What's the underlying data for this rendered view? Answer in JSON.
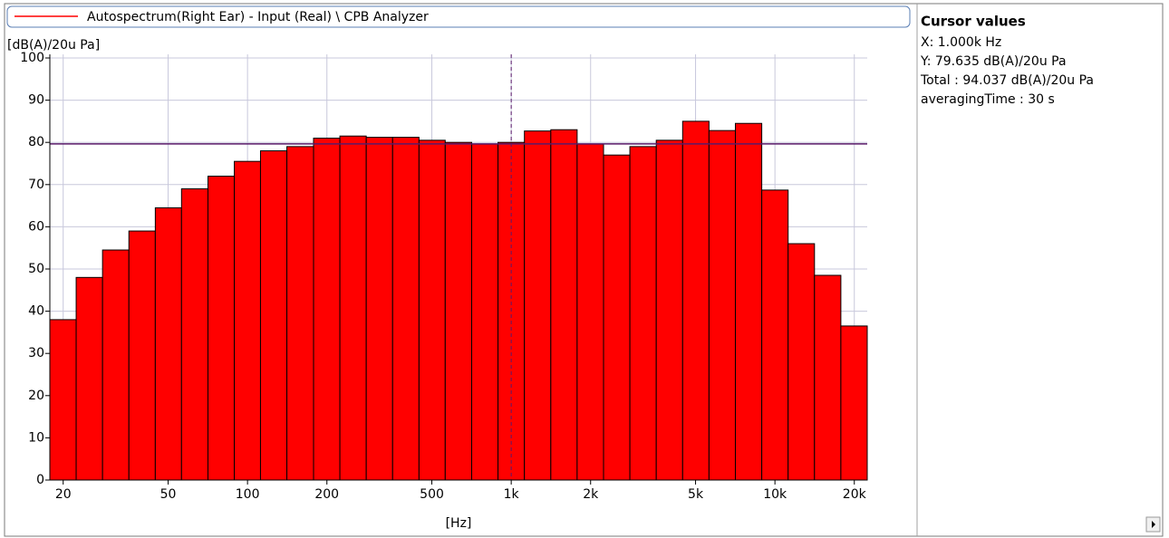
{
  "chart_data": {
    "type": "histogram",
    "legend_label": "Autospectrum(Right Ear) - Input (Real) \\ CPB Analyzer",
    "ylabel": "[dB(A)/20u Pa]",
    "xlabel": "[Hz]",
    "color": "#ff0000",
    "log_x": true,
    "grid": true,
    "bins": [
      17.8,
      22.4,
      28.2,
      35.5,
      44.7,
      56.2,
      70.8,
      89.1,
      112,
      141,
      178,
      224,
      282,
      355,
      447,
      562,
      708,
      891,
      1122,
      1413,
      1778,
      2239,
      2818,
      3548,
      4467,
      5623,
      7079,
      8913,
      11220,
      14125,
      17783,
      22387
    ],
    "values": [
      38,
      48,
      54.5,
      59,
      64.5,
      69,
      72,
      75.5,
      78,
      79,
      81,
      81.5,
      81.2,
      81.2,
      80.5,
      80,
      79.6,
      80,
      82.7,
      83,
      79.6,
      77,
      79,
      80.5,
      85,
      82.8,
      84.5,
      68.7,
      56,
      48.5,
      36.5
    ],
    "xlim": [
      17.8,
      22387
    ],
    "ylim": [
      0,
      100
    ],
    "xticks": [
      20,
      50,
      100,
      200,
      500,
      {
        "value": 1000,
        "label": "1k"
      },
      {
        "value": 2000,
        "label": "2k"
      },
      {
        "value": 5000,
        "label": "5k"
      },
      {
        "value": 10000,
        "label": "10k"
      },
      {
        "value": 20000,
        "label": "20k"
      }
    ],
    "yticks": [
      0,
      10,
      20,
      30,
      40,
      50,
      60,
      70,
      80,
      90,
      100
    ],
    "cursor": {
      "x": 1000,
      "y": 79.635
    }
  },
  "cursor_panel": {
    "title": "Cursor values",
    "lines": [
      "X: 1.000k Hz",
      "Y: 79.635 dB(A)/20u Pa",
      "Total : 94.037 dB(A)/20u Pa",
      "averagingTime : 30 s"
    ]
  }
}
